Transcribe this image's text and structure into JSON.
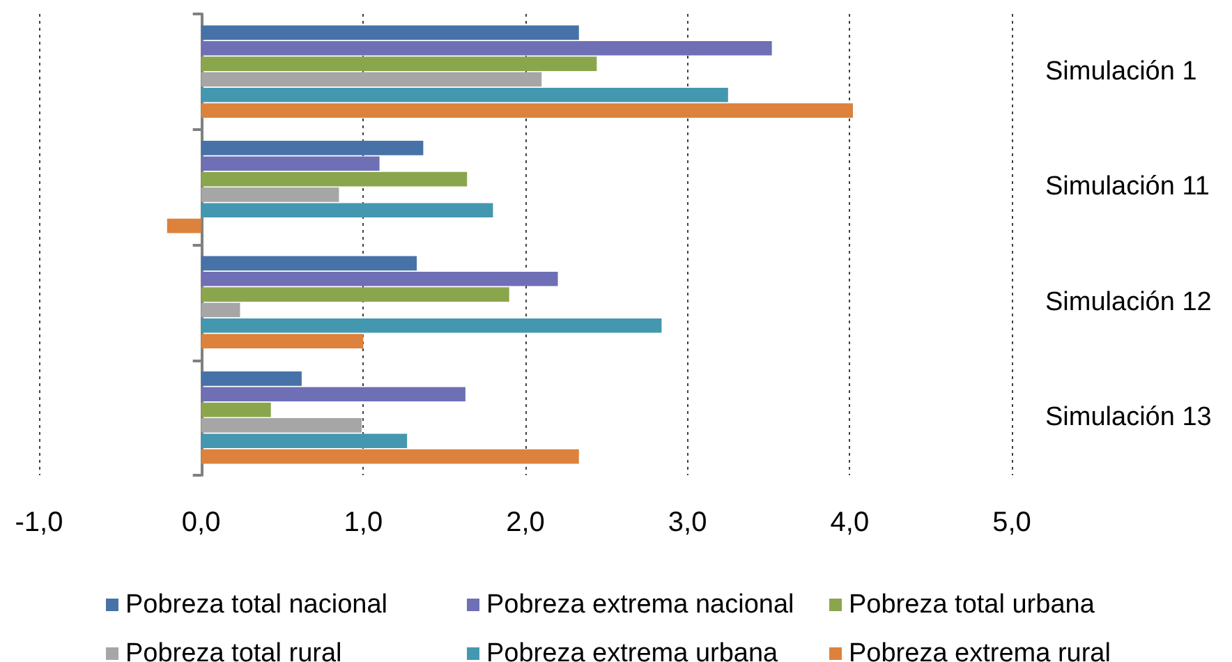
{
  "chart_data": {
    "type": "bar",
    "orientation": "horizontal",
    "categories": [
      "Simulación 1",
      "Simulación 11",
      "Simulación 12",
      "Simulación 13"
    ],
    "series": [
      {
        "name": "Pobreza total nacional",
        "color": "#4672a8",
        "values": [
          2.33,
          1.37,
          1.33,
          0.62
        ]
      },
      {
        "name": "Pobreza extrema nacional",
        "color": "#6f6fb5",
        "values": [
          3.52,
          1.1,
          2.2,
          1.63
        ]
      },
      {
        "name": "Pobreza total urbana",
        "color": "#8aa64d",
        "values": [
          2.44,
          1.64,
          1.9,
          0.43
        ]
      },
      {
        "name": "Pobreza total rural",
        "color": "#a6a6a6",
        "values": [
          2.1,
          0.85,
          0.24,
          0.99
        ]
      },
      {
        "name": "Pobreza extrema urbana",
        "color": "#4398b0",
        "values": [
          3.25,
          1.8,
          2.84,
          1.27
        ]
      },
      {
        "name": "Pobreza extrema rural",
        "color": "#dc823c",
        "values": [
          4.02,
          -0.21,
          1.0,
          2.33
        ]
      }
    ],
    "xlim": [
      -1,
      5
    ],
    "xticks": [
      {
        "value": -1,
        "label": "-1,0"
      },
      {
        "value": 0,
        "label": "0,0"
      },
      {
        "value": 1,
        "label": "1,0"
      },
      {
        "value": 2,
        "label": "2,0"
      },
      {
        "value": 3,
        "label": "3,0"
      },
      {
        "value": 4,
        "label": "4,0"
      },
      {
        "value": 5,
        "label": "5,0"
      }
    ],
    "grid": "x",
    "legend": "bottom"
  }
}
